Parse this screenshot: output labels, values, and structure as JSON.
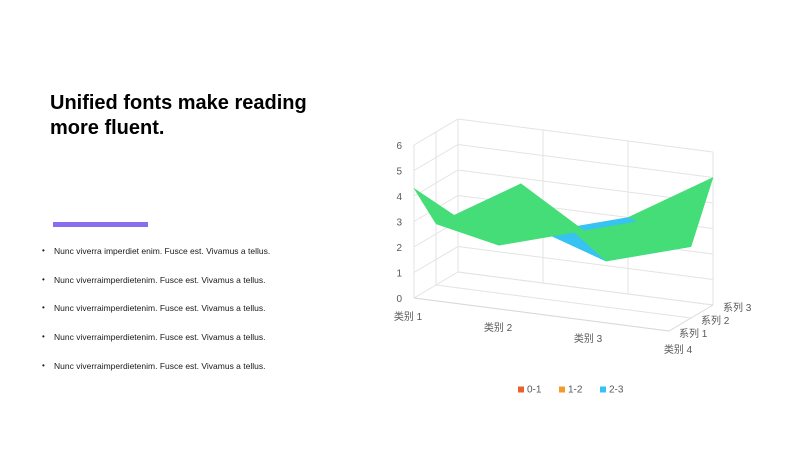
{
  "slide": {
    "title": "Unified fonts make reading more fluent.",
    "bullets": [
      "Nunc viverra imperdiet enim. Fusce est. Vivamus a tellus.",
      "Nunc viverraimperdietenim. Fusce est. Vivamus a tellus.",
      "Nunc viverraimperdietenim. Fusce est. Vivamus a tellus.",
      "Nunc viverraimperdietenim. Fusce est. Vivamus a tellus.",
      "Nunc viverraimperdietenim. Fusce est. Vivamus a tellus."
    ],
    "accent_color": "#8a6cf0"
  },
  "chart_data": {
    "type": "surface",
    "title": "",
    "categories": [
      "类别 1",
      "类别 2",
      "类别 3",
      "类别 4"
    ],
    "series": [
      {
        "name": "系列 1",
        "values": [
          4.3,
          2.5,
          3.5,
          4.5
        ]
      },
      {
        "name": "系列 2",
        "values": [
          2.4,
          4.4,
          1.8,
          2.8
        ]
      },
      {
        "name": "系列 3",
        "values": [
          2.0,
          2.0,
          3.0,
          5.0
        ]
      }
    ],
    "zlim": [
      0,
      6
    ],
    "z_ticks": [
      "0",
      "1",
      "2",
      "3",
      "4",
      "5",
      "6"
    ],
    "legend": {
      "position": "bottom",
      "items": [
        {
          "label": "0-1",
          "color": "#e8632b"
        },
        {
          "label": "1-2",
          "color": "#f59a2e"
        },
        {
          "label": "2-3",
          "color": "#37c3f2"
        }
      ]
    },
    "band_colors": [
      "#e8632b",
      "#f59a2e",
      "#37c3f2",
      "#44dd77",
      "#9b7bf2",
      "#ffc63a"
    ]
  }
}
